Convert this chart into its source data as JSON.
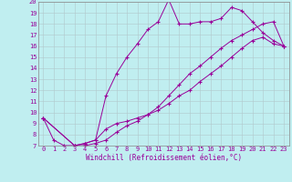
{
  "xlabel": "Windchill (Refroidissement éolien,°C)",
  "bg_color": "#c0eef0",
  "line_color": "#990099",
  "grid_color": "#b0c8cc",
  "series1_x": [
    0,
    1,
    2,
    3,
    4,
    5,
    6,
    7,
    8,
    9,
    10,
    11,
    12,
    13,
    14,
    15,
    16,
    17,
    18,
    19,
    20,
    21,
    22,
    23
  ],
  "series1_y": [
    9.5,
    7.5,
    7.0,
    7.0,
    7.2,
    7.5,
    11.5,
    13.5,
    15.0,
    16.2,
    17.5,
    18.2,
    20.2,
    18.0,
    18.0,
    18.2,
    18.2,
    18.5,
    19.5,
    19.2,
    18.2,
    17.2,
    16.5,
    16.0
  ],
  "series2_x": [
    0,
    3,
    4,
    5,
    6,
    7,
    8,
    9,
    10,
    11,
    12,
    13,
    14,
    15,
    16,
    17,
    18,
    19,
    20,
    21,
    22,
    23
  ],
  "series2_y": [
    9.5,
    7.0,
    7.2,
    7.5,
    8.5,
    9.0,
    9.2,
    9.5,
    9.8,
    10.2,
    10.8,
    11.5,
    12.0,
    12.8,
    13.5,
    14.2,
    15.0,
    15.8,
    16.5,
    16.8,
    16.2,
    16.0
  ],
  "series3_x": [
    0,
    3,
    4,
    5,
    6,
    7,
    8,
    9,
    10,
    11,
    12,
    13,
    14,
    15,
    16,
    17,
    18,
    19,
    20,
    21,
    22,
    23
  ],
  "series3_y": [
    9.5,
    7.0,
    7.0,
    7.2,
    7.5,
    8.2,
    8.8,
    9.2,
    9.8,
    10.5,
    11.5,
    12.5,
    13.5,
    14.2,
    15.0,
    15.8,
    16.5,
    17.0,
    17.5,
    18.0,
    18.2,
    16.0
  ],
  "xlim": [
    -0.5,
    23.5
  ],
  "ylim": [
    7,
    20
  ],
  "xticks": [
    0,
    1,
    2,
    3,
    4,
    5,
    6,
    7,
    8,
    9,
    10,
    11,
    12,
    13,
    14,
    15,
    16,
    17,
    18,
    19,
    20,
    21,
    22,
    23
  ],
  "yticks": [
    7,
    8,
    9,
    10,
    11,
    12,
    13,
    14,
    15,
    16,
    17,
    18,
    19,
    20
  ],
  "tick_fontsize": 5.0,
  "xlabel_fontsize": 5.5,
  "linewidth": 0.7,
  "markersize": 3.5
}
